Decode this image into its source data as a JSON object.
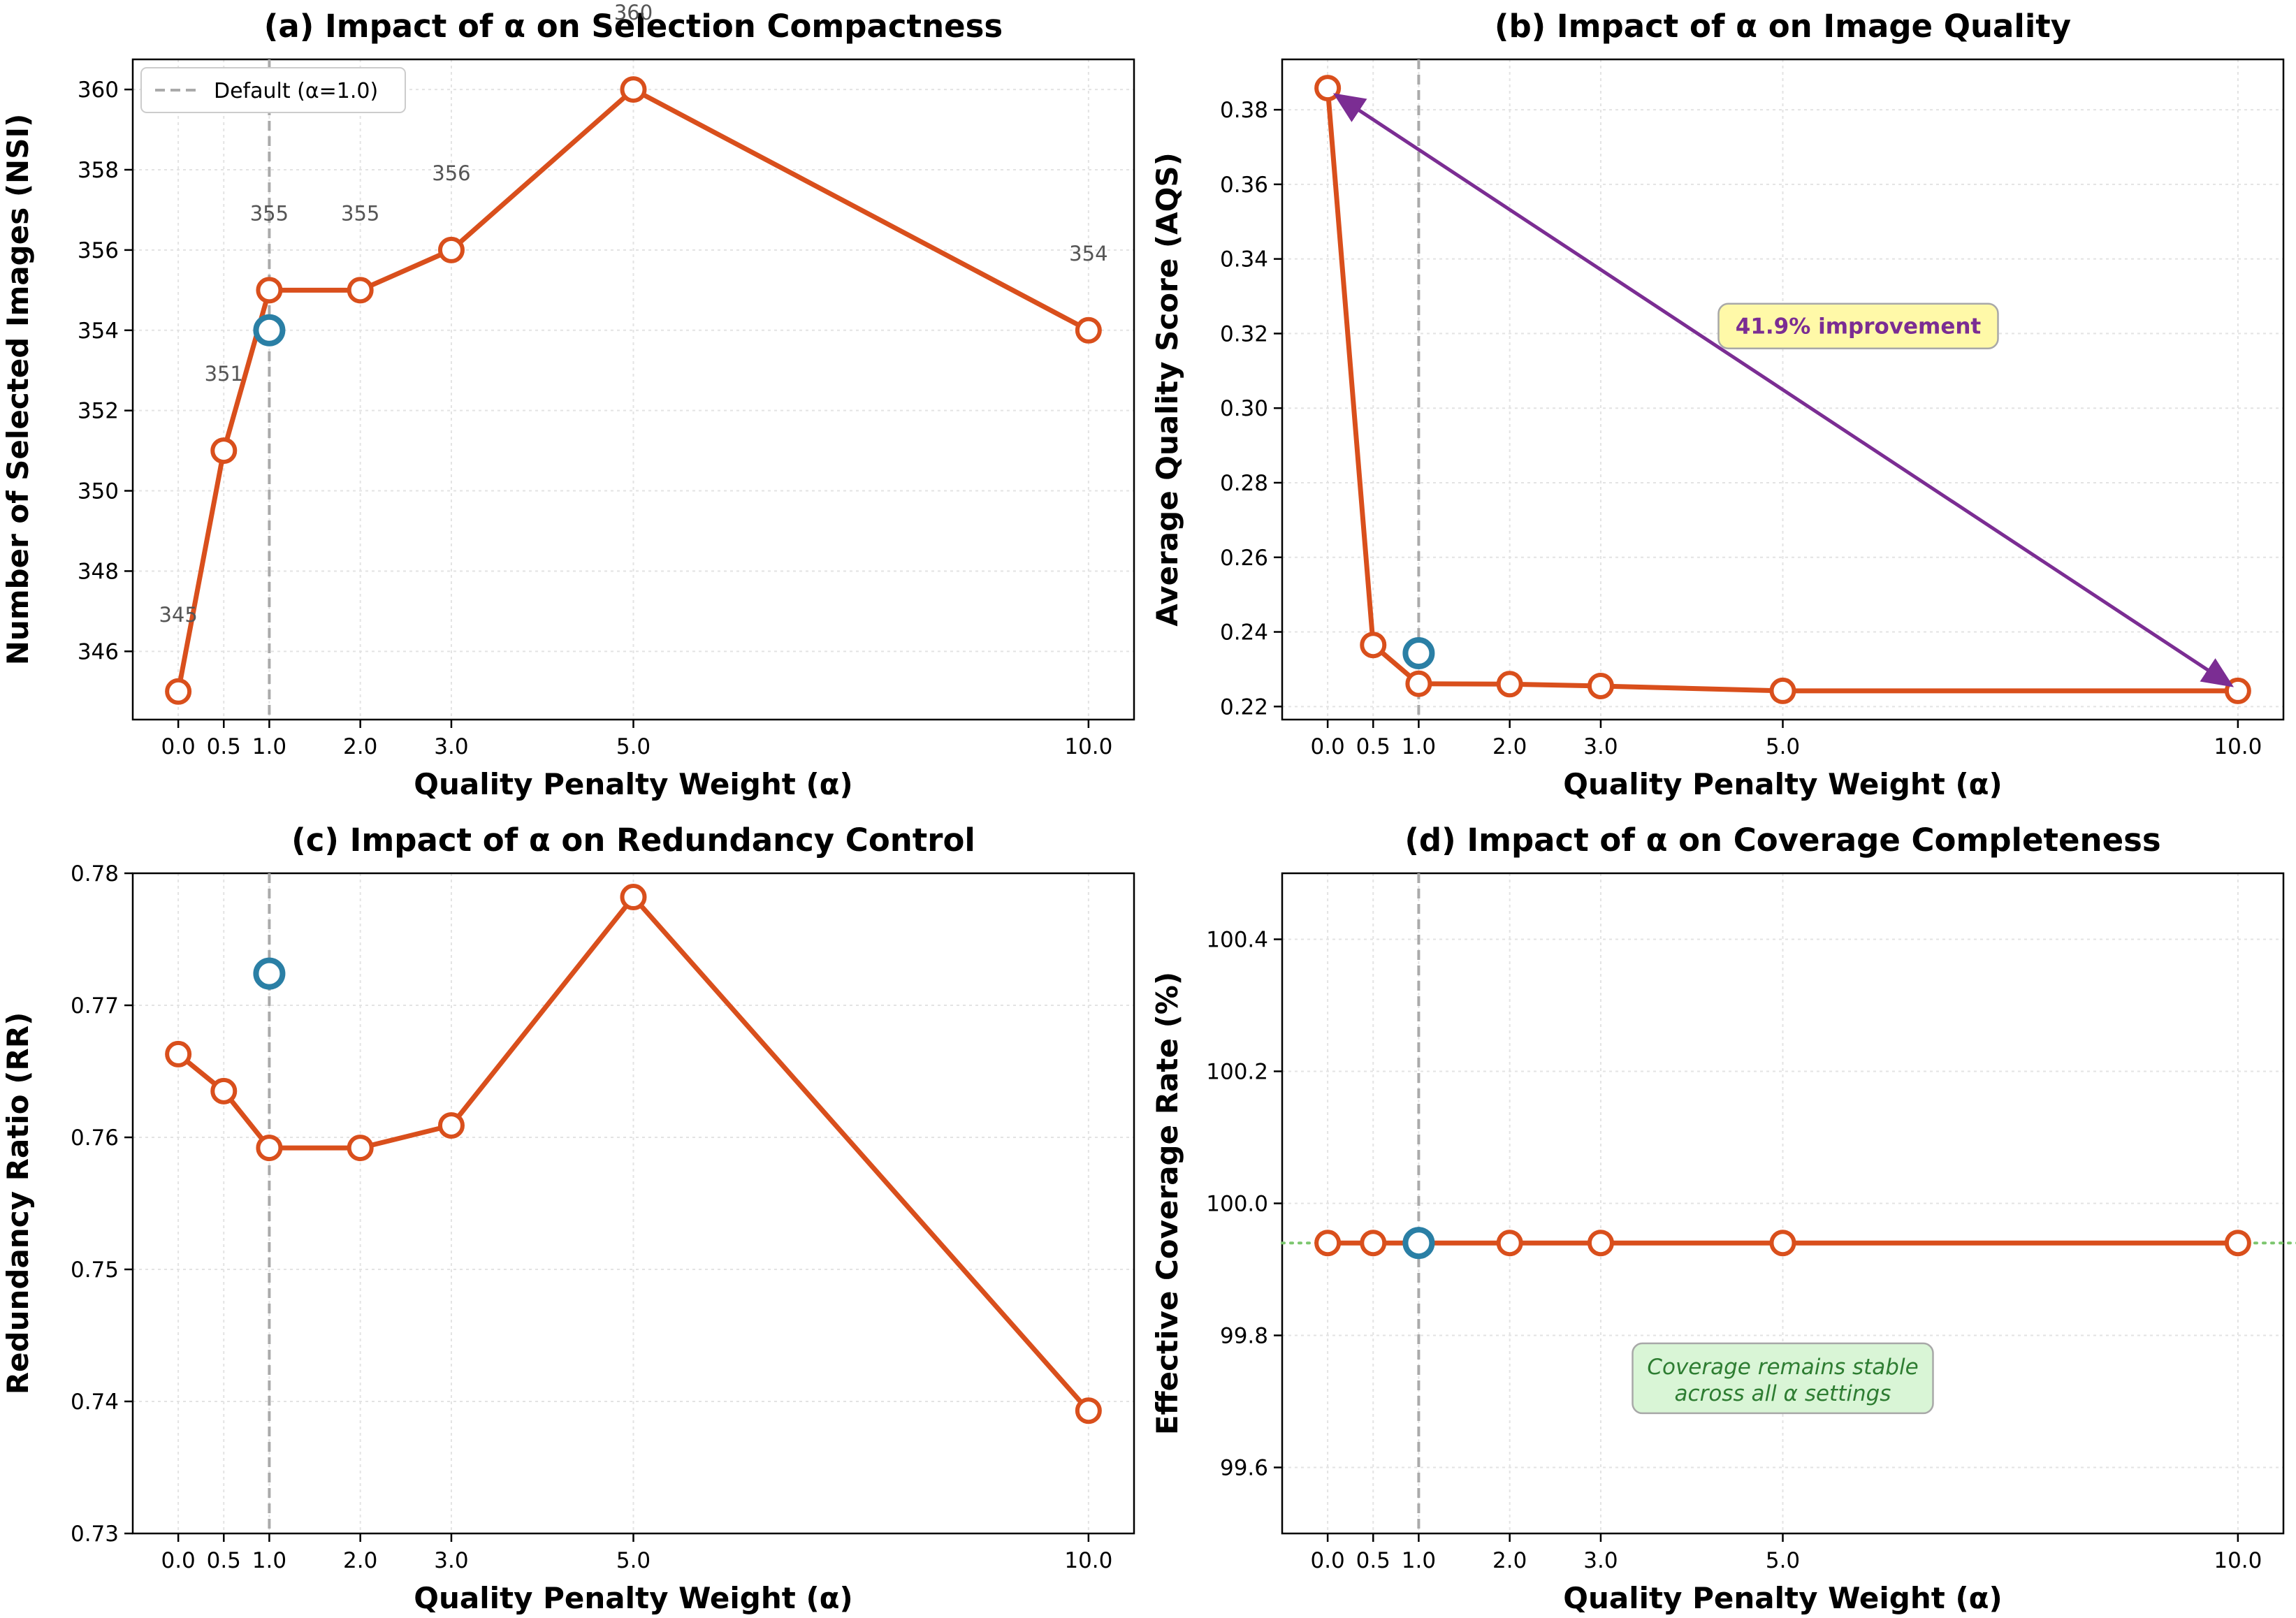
{
  "colors": {
    "series": "#d94f1c",
    "default_marker": "#2a7fa5",
    "default_line": "#aaaaaa",
    "grid": "#e3e3e3",
    "arrow": "#7b2d93",
    "improve_box": "#fff9a8",
    "coverage_box": "#d9f5d6",
    "coverage_ref": "#7cc66e"
  },
  "chart_data": [
    {
      "id": "a",
      "type": "line",
      "title": "(a) Impact of α on Selection Compactness",
      "xlabel": "Quality Penalty Weight (α)",
      "ylabel": "Number of Selected Images (NSI)",
      "x": [
        0.0,
        0.5,
        1.0,
        2.0,
        3.0,
        5.0,
        10.0
      ],
      "x_tick_labels": [
        "0.0",
        "0.5",
        "1.0",
        "2.0",
        "3.0",
        "5.0",
        "10.0"
      ],
      "y": [
        345,
        351,
        355,
        355,
        356,
        360,
        354
      ],
      "data_labels": [
        "345",
        "351",
        "355",
        "355",
        "356",
        "360",
        "354"
      ],
      "y_ticks": [
        346,
        348,
        350,
        352,
        354,
        356,
        358,
        360
      ],
      "y_tick_labels": [
        "346",
        "348",
        "350",
        "352",
        "354",
        "356",
        "358",
        "360"
      ],
      "xlim": [
        -0.5,
        10.5
      ],
      "ylim": [
        344.3,
        360.75
      ],
      "default_alpha": 1.0,
      "default_value": 354,
      "grid": true,
      "legend": {
        "position": "top-left",
        "label": "Default (α=1.0)"
      }
    },
    {
      "id": "b",
      "type": "line",
      "title": "(b) Impact of α on Image Quality",
      "xlabel": "Quality Penalty Weight (α)",
      "ylabel": "Average Quality Score (AQS)",
      "x": [
        0.0,
        0.5,
        1.0,
        2.0,
        3.0,
        5.0,
        10.0
      ],
      "x_tick_labels": [
        "0.0",
        "0.5",
        "1.0",
        "2.0",
        "3.0",
        "5.0",
        "10.0"
      ],
      "y": [
        0.3858,
        0.2365,
        0.2261,
        0.226,
        0.2255,
        0.2242,
        0.2242
      ],
      "y_ticks": [
        0.22,
        0.24,
        0.26,
        0.28,
        0.3,
        0.32,
        0.34,
        0.36,
        0.38
      ],
      "y_tick_labels": [
        "0.22",
        "0.24",
        "0.26",
        "0.28",
        "0.30",
        "0.32",
        "0.34",
        "0.36",
        "0.38"
      ],
      "xlim": [
        -0.5,
        10.5
      ],
      "ylim": [
        0.2165,
        0.3935
      ],
      "default_alpha": 1.0,
      "default_value": 0.2343,
      "grid": true,
      "annotation": {
        "text": "41.9% improvement",
        "at_x": 5.0,
        "at_y": 0.322,
        "arrow_from": [
          10.0,
          0.2242
        ],
        "arrow_to": [
          0.0,
          0.3858
        ]
      }
    },
    {
      "id": "c",
      "type": "line",
      "title": "(c) Impact of α on Redundancy Control",
      "xlabel": "Quality Penalty Weight (α)",
      "ylabel": "Redundancy Ratio (RR)",
      "x": [
        0.0,
        0.5,
        1.0,
        2.0,
        3.0,
        5.0,
        10.0
      ],
      "x_tick_labels": [
        "0.0",
        "0.5",
        "1.0",
        "2.0",
        "3.0",
        "5.0",
        "10.0"
      ],
      "y": [
        0.7663,
        0.7635,
        0.7592,
        0.7592,
        0.7609,
        0.7782,
        0.7393
      ],
      "y_ticks": [
        0.73,
        0.74,
        0.75,
        0.76,
        0.77,
        0.78
      ],
      "y_tick_labels": [
        "0.73",
        "0.74",
        "0.75",
        "0.76",
        "0.77",
        "0.78"
      ],
      "xlim": [
        -0.5,
        10.5
      ],
      "ylim": [
        0.73,
        0.78
      ],
      "default_alpha": 1.0,
      "default_value": 0.7724,
      "grid": true
    },
    {
      "id": "d",
      "type": "line",
      "title": "(d) Impact of α on Coverage Completeness",
      "xlabel": "Quality Penalty Weight (α)",
      "ylabel": "Effective Coverage Rate (%)",
      "x": [
        0.0,
        0.5,
        1.0,
        2.0,
        3.0,
        5.0,
        10.0
      ],
      "x_tick_labels": [
        "0.0",
        "0.5",
        "1.0",
        "2.0",
        "3.0",
        "5.0",
        "10.0"
      ],
      "y": [
        99.94,
        99.94,
        99.94,
        99.94,
        99.94,
        99.94,
        99.94
      ],
      "y_ticks": [
        99.6,
        99.8,
        100.0,
        100.2,
        100.4
      ],
      "y_tick_labels": [
        "99.6",
        "99.8",
        "100.0",
        "100.2",
        "100.4"
      ],
      "xlim": [
        -0.5,
        10.5
      ],
      "ylim": [
        99.5,
        100.5
      ],
      "default_alpha": 1.0,
      "default_value": 99.94,
      "reference_line": 99.94,
      "grid": true,
      "annotation": {
        "lines": [
          "Coverage remains stable",
          "across all α settings"
        ],
        "at_x": 5.0,
        "at_y": 99.735
      }
    }
  ]
}
